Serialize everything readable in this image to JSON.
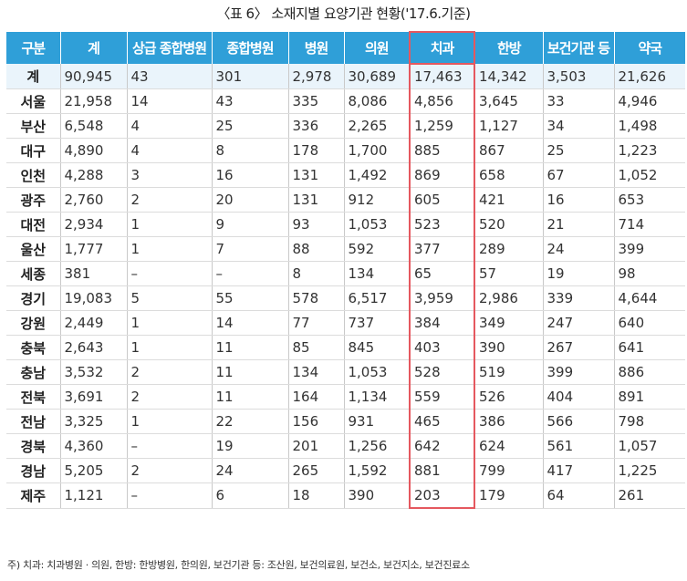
{
  "caption": "〈표 6〉 소재지별 요양기관 현황('17.6.기준)",
  "table": {
    "headers": [
      "구분",
      "계",
      "상급 종합병원",
      "종합병원",
      "병원",
      "의원",
      "치과",
      "한방",
      "보건기관 등",
      "약국"
    ],
    "rows": [
      [
        "계",
        "90,945",
        "43",
        "301",
        "2,978",
        "30,689",
        "17,463",
        "14,342",
        "3,503",
        "21,626"
      ],
      [
        "서울",
        "21,958",
        "14",
        "43",
        "335",
        "8,086",
        "4,856",
        "3,645",
        "33",
        "4,946"
      ],
      [
        "부산",
        "6,548",
        "4",
        "25",
        "336",
        "2,265",
        "1,259",
        "1,127",
        "34",
        "1,498"
      ],
      [
        "대구",
        "4,890",
        "4",
        "8",
        "178",
        "1,700",
        "885",
        "867",
        "25",
        "1,223"
      ],
      [
        "인천",
        "4,288",
        "3",
        "16",
        "131",
        "1,492",
        "869",
        "658",
        "67",
        "1,052"
      ],
      [
        "광주",
        "2,760",
        "2",
        "20",
        "131",
        "912",
        "605",
        "421",
        "16",
        "653"
      ],
      [
        "대전",
        "2,934",
        "1",
        "9",
        "93",
        "1,053",
        "523",
        "520",
        "21",
        "714"
      ],
      [
        "울산",
        "1,777",
        "1",
        "7",
        "88",
        "592",
        "377",
        "289",
        "24",
        "399"
      ],
      [
        "세종",
        "381",
        "–",
        "–",
        "8",
        "134",
        "65",
        "57",
        "19",
        "98"
      ],
      [
        "경기",
        "19,083",
        "5",
        "55",
        "578",
        "6,517",
        "3,959",
        "2,986",
        "339",
        "4,644"
      ],
      [
        "강원",
        "2,449",
        "1",
        "14",
        "77",
        "737",
        "384",
        "349",
        "247",
        "640"
      ],
      [
        "충북",
        "2,643",
        "1",
        "11",
        "85",
        "845",
        "403",
        "390",
        "267",
        "641"
      ],
      [
        "충남",
        "3,532",
        "2",
        "11",
        "134",
        "1,053",
        "528",
        "519",
        "399",
        "886"
      ],
      [
        "전북",
        "3,691",
        "2",
        "11",
        "164",
        "1,134",
        "559",
        "526",
        "404",
        "891"
      ],
      [
        "전남",
        "3,325",
        "1",
        "22",
        "156",
        "931",
        "465",
        "386",
        "566",
        "798"
      ],
      [
        "경북",
        "4,360",
        "–",
        "19",
        "201",
        "1,256",
        "642",
        "624",
        "561",
        "1,057"
      ],
      [
        "경남",
        "5,205",
        "2",
        "24",
        "265",
        "1,592",
        "881",
        "799",
        "417",
        "1,225"
      ],
      [
        "제주",
        "1,121",
        "–",
        "6",
        "18",
        "390",
        "203",
        "179",
        "64",
        "261"
      ]
    ]
  },
  "footnote": "주) 치과: 치과병원 · 의원, 한방: 한방병원, 한의원, 보건기관 등: 조산원, 보건의료원, 보건소, 보건지소, 보건진료소",
  "colors": {
    "header_bg": "#2f9fd8",
    "highlight_border": "#e5585f",
    "total_row_bg": "#eaf4fb"
  }
}
